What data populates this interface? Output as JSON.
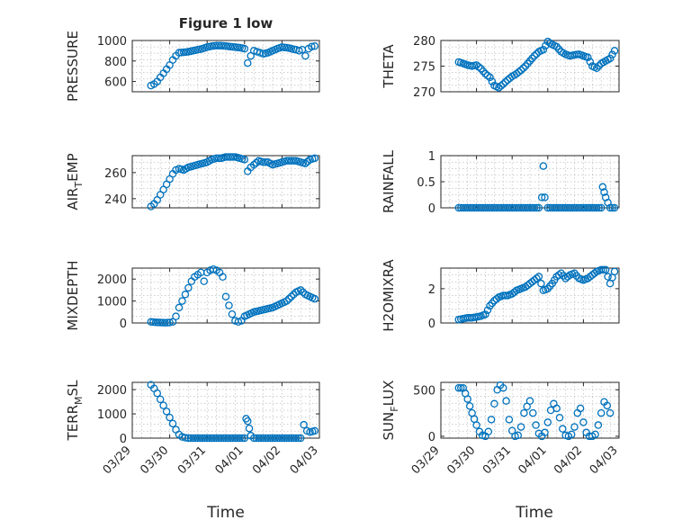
{
  "figure": {
    "title": "Figure 1 low",
    "xlabel": "Time",
    "date_ticks": [
      "03/29",
      "03/30",
      "03/31",
      "04/01",
      "04/02",
      "04/03"
    ]
  },
  "chart_data": [
    {
      "type": "scatter",
      "ylabel_main": "PRESSURE",
      "ylabel_sub": "",
      "ylabel_tail": "",
      "ylim": [
        500,
        1000
      ],
      "yticks": [
        600,
        800,
        1000
      ],
      "grid": true,
      "color": "#0072BD",
      "x": [
        "03/29 12:00",
        "03/29 14:00",
        "03/29 16:00",
        "03/29 18:00",
        "03/29 20:00",
        "03/29 22:00",
        "03/30 00:00",
        "03/30 02:00",
        "03/30 04:00",
        "03/30 06:00",
        "03/30 09:00",
        "03/30 12:00",
        "03/30 15:00",
        "03/30 18:00",
        "03/30 21:00",
        "03/31 00:00",
        "03/31 03:00",
        "03/31 06:00",
        "03/31 09:00",
        "03/31 12:00",
        "03/31 15:00",
        "03/31 18:00",
        "03/31 21:00",
        "04/01 00:00",
        "04/01 02:00",
        "04/01 04:00",
        "04/01 06:00",
        "04/01 08:00",
        "04/01 10:00",
        "04/01 12:00",
        "04/01 15:00",
        "04/01 18:00",
        "04/01 21:00",
        "04/02 00:00",
        "04/02 03:00",
        "04/02 06:00",
        "04/02 09:00",
        "04/02 11:00",
        "04/02 13:00",
        "04/02 15:00",
        "04/02 17:00",
        "04/02 19:00",
        "04/02 21:00"
      ],
      "y": [
        560,
        575,
        600,
        640,
        680,
        720,
        760,
        810,
        850,
        880,
        885,
        890,
        900,
        910,
        920,
        935,
        945,
        950,
        950,
        945,
        940,
        935,
        930,
        920,
        780,
        850,
        900,
        890,
        880,
        870,
        880,
        900,
        920,
        935,
        930,
        920,
        910,
        900,
        910,
        850,
        920,
        940,
        945
      ]
    },
    {
      "type": "scatter",
      "ylabel_main": "THETA",
      "ylabel_sub": "",
      "ylabel_tail": "",
      "ylim": [
        270,
        280
      ],
      "yticks": [
        270,
        275,
        280
      ],
      "grid": true,
      "color": "#0072BD",
      "x": [
        "03/29 12:00",
        "03/29 15:00",
        "03/29 18:00",
        "03/29 21:00",
        "03/30 00:00",
        "03/30 03:00",
        "03/30 06:00",
        "03/30 09:00",
        "03/30 12:00",
        "03/30 15:00",
        "03/30 18:00",
        "03/30 21:00",
        "03/31 00:00",
        "03/31 03:00",
        "03/31 06:00",
        "03/31 09:00",
        "03/31 12:00",
        "03/31 15:00",
        "03/31 18:00",
        "03/31 21:00",
        "04/01 00:00",
        "04/01 03:00",
        "04/01 06:00",
        "04/01 09:00",
        "04/01 12:00",
        "04/01 15:00",
        "04/01 18:00",
        "04/01 21:00",
        "04/02 00:00",
        "04/02 03:00",
        "04/02 06:00",
        "04/02 09:00",
        "04/02 12:00",
        "04/02 15:00",
        "04/02 18:00",
        "04/02 21:00"
      ],
      "y": [
        275.8,
        275.5,
        275.2,
        275.0,
        275.2,
        274.5,
        273.5,
        272.8,
        271.2,
        270.8,
        271.5,
        272.3,
        273.0,
        273.5,
        274.2,
        275.0,
        276.0,
        277.0,
        277.8,
        278.2,
        279.8,
        279.2,
        278.8,
        277.8,
        277.3,
        277.0,
        277.2,
        277.3,
        277.0,
        276.7,
        275.0,
        274.6,
        275.5,
        276.0,
        276.5,
        278.0
      ]
    },
    {
      "type": "scatter",
      "ylabel_main": "AIR",
      "ylabel_sub": "T",
      "ylabel_tail": "EMP",
      "ylim": [
        233,
        273
      ],
      "yticks": [
        240,
        260
      ],
      "grid": true,
      "color": "#0072BD",
      "x": [
        "03/29 12:00",
        "03/29 14:00",
        "03/29 16:00",
        "03/29 18:00",
        "03/29 20:00",
        "03/29 22:00",
        "03/30 00:00",
        "03/30 02:00",
        "03/30 04:00",
        "03/30 06:00",
        "03/30 09:00",
        "03/30 12:00",
        "03/30 15:00",
        "03/30 18:00",
        "03/30 21:00",
        "03/31 00:00",
        "03/31 03:00",
        "03/31 06:00",
        "03/31 09:00",
        "03/31 12:00",
        "03/31 15:00",
        "03/31 18:00",
        "03/31 21:00",
        "04/01 00:00",
        "04/01 02:00",
        "04/01 04:00",
        "04/01 06:00",
        "04/01 09:00",
        "04/01 12:00",
        "04/01 15:00",
        "04/01 18:00",
        "04/01 21:00",
        "04/02 00:00",
        "04/02 03:00",
        "04/02 06:00",
        "04/02 09:00",
        "04/02 12:00",
        "04/02 15:00",
        "04/02 18:00",
        "04/02 21:00"
      ],
      "y": [
        234,
        236,
        239,
        243,
        247,
        251,
        255,
        259,
        262,
        263,
        262,
        264,
        265,
        266,
        267,
        268,
        270,
        271,
        271,
        272,
        272,
        272,
        271,
        270,
        261,
        264,
        266,
        269,
        268,
        268,
        266,
        267,
        268,
        269,
        269,
        269,
        268,
        267,
        270,
        271
      ]
    },
    {
      "type": "scatter",
      "ylabel_main": "RAINFALL",
      "ylabel_sub": "",
      "ylabel_tail": "",
      "ylim": [
        0,
        1
      ],
      "yticks": [
        0,
        0.5,
        1
      ],
      "grid": true,
      "color": "#0072BD",
      "x": [
        "03/29 12:00",
        "03/29 18:00",
        "03/30 00:00",
        "03/30 06:00",
        "03/30 12:00",
        "03/30 18:00",
        "03/31 00:00",
        "03/31 06:00",
        "03/31 12:00",
        "03/31 18:00",
        "03/31 20:00",
        "03/31 21:00",
        "03/31 22:00",
        "04/01 00:00",
        "04/01 06:00",
        "04/01 12:00",
        "04/01 18:00",
        "04/02 00:00",
        "04/02 06:00",
        "04/02 12:00",
        "04/02 13:00",
        "04/02 14:00",
        "04/02 15:00",
        "04/02 18:00",
        "04/02 21:00"
      ],
      "y": [
        0,
        0,
        0,
        0,
        0,
        0,
        0,
        0,
        0,
        0,
        0.2,
        0.8,
        0.2,
        0,
        0,
        0,
        0,
        0,
        0,
        0,
        0.4,
        0.3,
        0.2,
        0,
        0
      ]
    },
    {
      "type": "scatter",
      "ylabel_main": "MIXDEPTH",
      "ylabel_sub": "",
      "ylabel_tail": "",
      "ylim": [
        0,
        2500
      ],
      "yticks": [
        0,
        1000,
        2000
      ],
      "grid": true,
      "color": "#0072BD",
      "x": [
        "03/29 12:00",
        "03/29 15:00",
        "03/29 18:00",
        "03/29 21:00",
        "03/30 00:00",
        "03/30 02:00",
        "03/30 04:00",
        "03/30 06:00",
        "03/30 08:00",
        "03/30 10:00",
        "03/30 12:00",
        "03/30 14:00",
        "03/30 16:00",
        "03/30 18:00",
        "03/30 20:00",
        "03/30 22:00",
        "03/31 00:00",
        "03/31 02:00",
        "03/31 04:00",
        "03/31 06:00",
        "03/31 08:00",
        "03/31 10:00",
        "03/31 12:00",
        "03/31 14:00",
        "03/31 16:00",
        "03/31 18:00",
        "03/31 20:00",
        "03/31 22:00",
        "04/01 00:00",
        "04/01 03:00",
        "04/01 06:00",
        "04/01 09:00",
        "04/01 12:00",
        "04/01 15:00",
        "04/01 18:00",
        "04/01 21:00",
        "04/02 00:00",
        "04/02 03:00",
        "04/02 06:00",
        "04/02 09:00",
        "04/02 12:00",
        "04/02 15:00",
        "04/02 18:00",
        "04/02 21:00"
      ],
      "y": [
        50,
        30,
        20,
        10,
        20,
        50,
        300,
        700,
        1000,
        1300,
        1600,
        1900,
        2100,
        2200,
        2300,
        1900,
        2300,
        2400,
        2450,
        2400,
        2300,
        2100,
        1200,
        800,
        400,
        100,
        50,
        100,
        300,
        400,
        500,
        550,
        600,
        650,
        700,
        800,
        900,
        1000,
        1200,
        1400,
        1500,
        1300,
        1200,
        1100
      ]
    },
    {
      "type": "scatter",
      "ylabel_main": "H2OMIXRA",
      "ylabel_sub": "",
      "ylabel_tail": "",
      "ylim": [
        0,
        3.2
      ],
      "yticks": [
        0,
        2
      ],
      "grid": true,
      "color": "#0072BD",
      "x": [
        "03/29 12:00",
        "03/29 15:00",
        "03/29 18:00",
        "03/29 21:00",
        "03/30 00:00",
        "03/30 03:00",
        "03/30 06:00",
        "03/30 09:00",
        "03/30 12:00",
        "03/30 15:00",
        "03/30 18:00",
        "03/30 21:00",
        "03/31 00:00",
        "03/31 03:00",
        "03/31 06:00",
        "03/31 09:00",
        "03/31 12:00",
        "03/31 15:00",
        "03/31 18:00",
        "03/31 21:00",
        "04/01 00:00",
        "04/01 03:00",
        "04/01 06:00",
        "04/01 09:00",
        "04/01 12:00",
        "04/01 15:00",
        "04/01 18:00",
        "04/01 21:00",
        "04/02 00:00",
        "04/02 03:00",
        "04/02 06:00",
        "04/02 09:00",
        "04/02 12:00",
        "04/02 15:00",
        "04/02 18:00",
        "04/02 21:00"
      ],
      "y": [
        0.2,
        0.25,
        0.3,
        0.3,
        0.35,
        0.4,
        0.5,
        1.0,
        1.3,
        1.5,
        1.6,
        1.6,
        1.7,
        1.9,
        2.0,
        2.1,
        2.3,
        2.5,
        2.7,
        1.9,
        2.0,
        2.3,
        2.7,
        2.9,
        2.6,
        2.8,
        2.9,
        2.6,
        2.5,
        2.6,
        2.8,
        3.0,
        3.1,
        3.1,
        2.3,
        3.0
      ]
    },
    {
      "type": "scatter",
      "ylabel_main": "TERR",
      "ylabel_sub": "M",
      "ylabel_tail": "SL",
      "ylim": [
        0,
        2300
      ],
      "yticks": [
        0,
        1000,
        2000
      ],
      "grid": true,
      "color": "#0072BD",
      "x": [
        "03/29 12:00",
        "03/29 14:00",
        "03/29 16:00",
        "03/29 18:00",
        "03/29 20:00",
        "03/29 22:00",
        "03/30 00:00",
        "03/30 02:00",
        "03/30 04:00",
        "03/30 06:00",
        "03/30 08:00",
        "03/30 10:00",
        "03/30 12:00",
        "03/30 18:00",
        "03/31 00:00",
        "03/31 06:00",
        "03/31 12:00",
        "03/31 18:00",
        "04/01 00:00",
        "04/01 01:00",
        "04/01 02:00",
        "04/01 03:00",
        "04/01 04:00",
        "04/01 06:00",
        "04/01 12:00",
        "04/01 18:00",
        "04/02 00:00",
        "04/02 06:00",
        "04/02 12:00",
        "04/02 14:00",
        "04/02 16:00",
        "04/02 18:00",
        "04/02 21:00"
      ],
      "y": [
        2200,
        2050,
        1850,
        1600,
        1350,
        1100,
        850,
        600,
        350,
        150,
        50,
        20,
        0,
        0,
        0,
        0,
        0,
        0,
        0,
        800,
        700,
        400,
        100,
        0,
        0,
        0,
        0,
        0,
        0,
        550,
        300,
        250,
        300
      ]
    },
    {
      "type": "scatter",
      "ylabel_main": "SUN",
      "ylabel_sub": "F",
      "ylabel_tail": "LUX",
      "ylim": [
        -20,
        580
      ],
      "yticks": [
        0,
        500
      ],
      "grid": true,
      "color": "#0072BD",
      "x": [
        "03/29 12:00",
        "03/29 15:00",
        "03/29 18:00",
        "03/29 21:00",
        "03/30 00:00",
        "03/30 02:00",
        "03/30 04:00",
        "03/30 06:00",
        "03/30 08:00",
        "03/30 10:00",
        "03/30 12:00",
        "03/30 14:00",
        "03/30 16:00",
        "03/30 18:00",
        "03/30 20:00",
        "03/30 22:00",
        "03/31 00:00",
        "03/31 02:00",
        "03/31 04:00",
        "03/31 06:00",
        "03/31 08:00",
        "03/31 10:00",
        "03/31 12:00",
        "03/31 14:00",
        "03/31 16:00",
        "03/31 18:00",
        "03/31 20:00",
        "03/31 22:00",
        "04/01 00:00",
        "04/01 02:00",
        "04/01 04:00",
        "04/01 06:00",
        "04/01 08:00",
        "04/01 10:00",
        "04/01 12:00",
        "04/01 14:00",
        "04/01 16:00",
        "04/01 18:00",
        "04/01 20:00",
        "04/01 22:00",
        "04/02 00:00",
        "04/02 02:00",
        "04/02 04:00",
        "04/02 06:00",
        "04/02 08:00",
        "04/02 10:00",
        "04/02 12:00",
        "04/02 14:00",
        "04/02 16:00",
        "04/02 18:00"
      ],
      "y": [
        520,
        520,
        400,
        250,
        120,
        50,
        10,
        0,
        50,
        180,
        350,
        500,
        550,
        520,
        380,
        180,
        60,
        0,
        10,
        100,
        250,
        320,
        380,
        250,
        120,
        30,
        0,
        40,
        150,
        280,
        350,
        300,
        200,
        80,
        10,
        0,
        20,
        100,
        250,
        300,
        150,
        40,
        0,
        0,
        20,
        120,
        250,
        370,
        330,
        250
      ]
    }
  ]
}
